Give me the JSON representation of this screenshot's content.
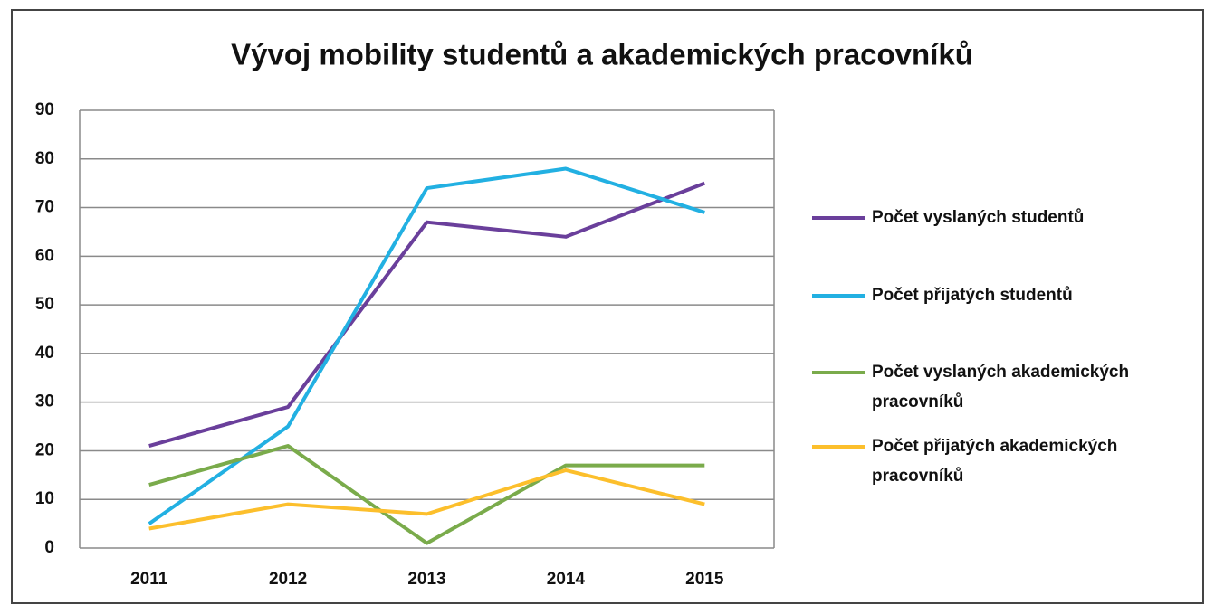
{
  "chart_data": {
    "type": "line",
    "title": "Vývoj mobility studentů a akademických pracovníků",
    "categories": [
      "2011",
      "2012",
      "2013",
      "2014",
      "2015"
    ],
    "series": [
      {
        "name": "Počet vyslaných studentů",
        "color": "#6a3f9b",
        "values": [
          21,
          29,
          67,
          64,
          75
        ]
      },
      {
        "name": "Počet přijatých studentů",
        "color": "#22b0e2",
        "values": [
          5,
          25,
          74,
          78,
          69
        ]
      },
      {
        "name": "Počet vyslaných akademických pracovníků",
        "color": "#7aab4b",
        "values": [
          13,
          21,
          1,
          17,
          17
        ]
      },
      {
        "name": "Počet přijatých akademických pracovníků",
        "color": "#fcbf2c",
        "values": [
          4,
          9,
          7,
          16,
          9
        ]
      }
    ],
    "ylim": [
      0,
      90
    ],
    "yticks": [
      0,
      10,
      20,
      30,
      40,
      50,
      60,
      70,
      80,
      90
    ],
    "grid": true,
    "legend": "right"
  }
}
